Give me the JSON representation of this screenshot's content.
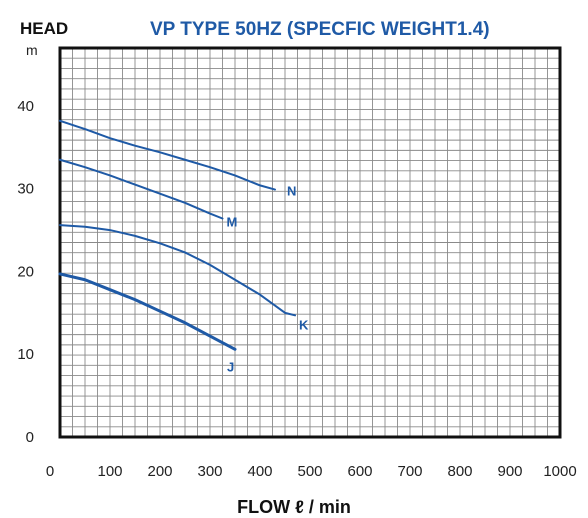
{
  "chart_data": {
    "type": "line",
    "head_label": "HEAD",
    "title": "VP TYPE 50HZ (SPECFIC WEIGHT1.4)",
    "ylabel_unit": "m",
    "xlabel": "FLOW ℓ / min",
    "xlim": [
      0,
      1000
    ],
    "ylim": [
      0,
      47
    ],
    "x_ticks": [
      "0",
      "100",
      "200",
      "300",
      "400",
      "500",
      "600",
      "700",
      "800",
      "900",
      "1000"
    ],
    "y_ticks": [
      "0",
      "10",
      "20",
      "30",
      "40"
    ],
    "grid": true,
    "series": [
      {
        "name": "N",
        "x": [
          0,
          50,
          100,
          150,
          200,
          250,
          300,
          350,
          400,
          430
        ],
        "y": [
          38.2,
          37.2,
          36.1,
          35.2,
          34.4,
          33.5,
          32.6,
          31.6,
          30.4,
          29.9
        ]
      },
      {
        "name": "M",
        "x": [
          0,
          50,
          100,
          150,
          200,
          250,
          300,
          325
        ],
        "y": [
          33.5,
          32.6,
          31.6,
          30.5,
          29.4,
          28.3,
          27.0,
          26.4
        ]
      },
      {
        "name": "K",
        "x": [
          0,
          50,
          100,
          150,
          200,
          250,
          300,
          350,
          400,
          450,
          470
        ],
        "y": [
          25.6,
          25.4,
          25.0,
          24.3,
          23.4,
          22.3,
          20.8,
          19.0,
          17.2,
          15.0,
          14.7
        ]
      },
      {
        "name": "J",
        "x": [
          0,
          50,
          100,
          150,
          200,
          250,
          300,
          350
        ],
        "y": [
          19.7,
          19.0,
          17.8,
          16.6,
          15.2,
          13.8,
          12.2,
          10.6
        ]
      }
    ],
    "line_color": "#1f5aa6",
    "title_color": "#1f5aa6"
  }
}
